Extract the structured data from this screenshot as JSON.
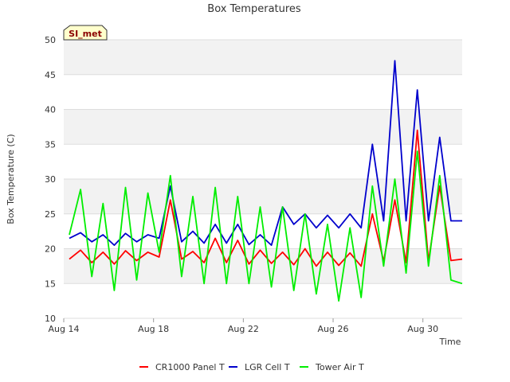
{
  "chart_data": {
    "type": "line",
    "title": "Box Temperatures",
    "xlabel": "Time",
    "ylabel": "Box Temperature (C)",
    "badge": "SI_met",
    "xlim": [
      "2023-08-14",
      "2023-08-31T18:00"
    ],
    "ylim": [
      10,
      50
    ],
    "yticks": [
      10,
      15,
      20,
      25,
      30,
      35,
      40,
      45,
      50
    ],
    "xticks": [
      {
        "date": "2023-08-14",
        "label": "Aug 14"
      },
      {
        "date": "2023-08-18",
        "label": "Aug 18"
      },
      {
        "date": "2023-08-22",
        "label": "Aug 22"
      },
      {
        "date": "2023-08-26",
        "label": "Aug 26"
      },
      {
        "date": "2023-08-30",
        "label": "Aug 30"
      }
    ],
    "grid": true,
    "legend_position": "bottom",
    "series": [
      {
        "name": "CR1000 Panel T",
        "color": "#ff0000",
        "x": [
          "2023-08-14T06:00",
          "2023-08-14T18:00",
          "2023-08-15T06:00",
          "2023-08-15T18:00",
          "2023-08-16T06:00",
          "2023-08-16T18:00",
          "2023-08-17T06:00",
          "2023-08-17T18:00",
          "2023-08-18T06:00",
          "2023-08-18T18:00",
          "2023-08-19T06:00",
          "2023-08-19T18:00",
          "2023-08-20T06:00",
          "2023-08-20T18:00",
          "2023-08-21T06:00",
          "2023-08-21T18:00",
          "2023-08-22T06:00",
          "2023-08-22T18:00",
          "2023-08-23T06:00",
          "2023-08-23T18:00",
          "2023-08-24T06:00",
          "2023-08-24T18:00",
          "2023-08-25T06:00",
          "2023-08-25T18:00",
          "2023-08-26T06:00",
          "2023-08-26T18:00",
          "2023-08-27T06:00",
          "2023-08-27T18:00",
          "2023-08-28T06:00",
          "2023-08-28T18:00",
          "2023-08-29T06:00",
          "2023-08-29T18:00",
          "2023-08-30T06:00",
          "2023-08-30T18:00",
          "2023-08-31T06:00",
          "2023-08-31T18:00"
        ],
        "y": [
          18.5,
          19.8,
          18.0,
          19.5,
          17.8,
          19.7,
          18.3,
          19.5,
          18.8,
          27.0,
          18.5,
          19.6,
          18.0,
          21.5,
          18.0,
          21.2,
          17.8,
          19.8,
          17.9,
          19.5,
          17.7,
          20.0,
          17.5,
          19.5,
          17.6,
          19.4,
          17.5,
          25.0,
          18.2,
          27.0,
          18.0,
          37.0,
          18.2,
          29.0,
          18.3,
          18.5
        ]
      },
      {
        "name": "LGR Cell T",
        "color": "#0000cc",
        "x": [
          "2023-08-14T06:00",
          "2023-08-14T18:00",
          "2023-08-15T06:00",
          "2023-08-15T18:00",
          "2023-08-16T06:00",
          "2023-08-16T18:00",
          "2023-08-17T06:00",
          "2023-08-17T18:00",
          "2023-08-18T06:00",
          "2023-08-18T18:00",
          "2023-08-19T06:00",
          "2023-08-19T18:00",
          "2023-08-20T06:00",
          "2023-08-20T18:00",
          "2023-08-21T06:00",
          "2023-08-21T18:00",
          "2023-08-22T06:00",
          "2023-08-22T18:00",
          "2023-08-23T06:00",
          "2023-08-23T18:00",
          "2023-08-24T06:00",
          "2023-08-24T18:00",
          "2023-08-25T06:00",
          "2023-08-25T18:00",
          "2023-08-26T06:00",
          "2023-08-26T18:00",
          "2023-08-27T06:00",
          "2023-08-27T18:00",
          "2023-08-28T06:00",
          "2023-08-28T18:00",
          "2023-08-29T06:00",
          "2023-08-29T18:00",
          "2023-08-30T06:00",
          "2023-08-30T18:00",
          "2023-08-31T06:00",
          "2023-08-31T18:00"
        ],
        "y": [
          21.5,
          22.3,
          21.0,
          22.0,
          20.5,
          22.2,
          21.0,
          22.0,
          21.5,
          29.0,
          21.0,
          22.5,
          20.8,
          23.5,
          20.8,
          23.5,
          20.6,
          22.0,
          20.5,
          26.0,
          23.5,
          25.0,
          23.0,
          24.8,
          23.0,
          25.0,
          23.0,
          35.0,
          24.0,
          47.0,
          24.0,
          42.8,
          24.0,
          36.0,
          24.0,
          24.0
        ]
      },
      {
        "name": "Tower Air T",
        "color": "#00ee00",
        "x": [
          "2023-08-14T06:00",
          "2023-08-14T18:00",
          "2023-08-15T06:00",
          "2023-08-15T18:00",
          "2023-08-16T06:00",
          "2023-08-16T18:00",
          "2023-08-17T06:00",
          "2023-08-17T18:00",
          "2023-08-18T06:00",
          "2023-08-18T18:00",
          "2023-08-19T06:00",
          "2023-08-19T18:00",
          "2023-08-20T06:00",
          "2023-08-20T18:00",
          "2023-08-21T06:00",
          "2023-08-21T18:00",
          "2023-08-22T06:00",
          "2023-08-22T18:00",
          "2023-08-23T06:00",
          "2023-08-23T18:00",
          "2023-08-24T06:00",
          "2023-08-24T18:00",
          "2023-08-25T06:00",
          "2023-08-25T18:00",
          "2023-08-26T06:00",
          "2023-08-26T18:00",
          "2023-08-27T06:00",
          "2023-08-27T18:00",
          "2023-08-28T06:00",
          "2023-08-28T18:00",
          "2023-08-29T06:00",
          "2023-08-29T18:00",
          "2023-08-30T06:00",
          "2023-08-30T18:00",
          "2023-08-31T06:00",
          "2023-08-31T18:00"
        ],
        "y": [
          22.0,
          28.5,
          16.0,
          26.5,
          14.0,
          28.8,
          15.5,
          28.0,
          19.5,
          30.5,
          16.0,
          27.5,
          15.0,
          28.8,
          15.0,
          27.5,
          15.0,
          26.0,
          14.5,
          26.0,
          14.0,
          25.0,
          13.5,
          23.5,
          12.5,
          23.0,
          13.0,
          29.0,
          17.5,
          30.0,
          16.5,
          34.0,
          17.5,
          30.5,
          15.5,
          15.0
        ]
      }
    ]
  }
}
